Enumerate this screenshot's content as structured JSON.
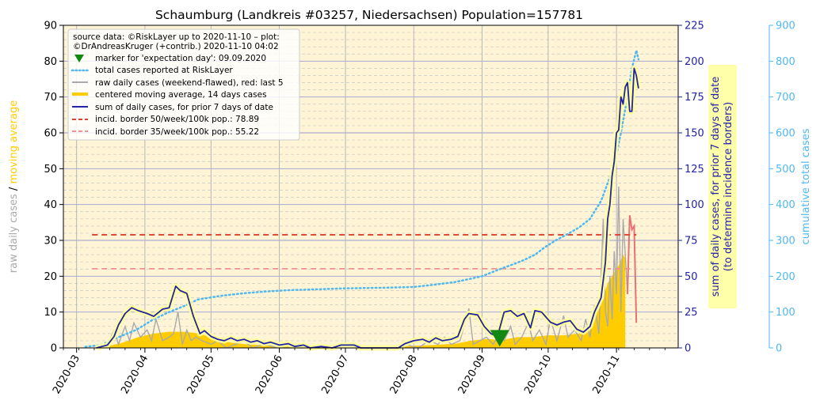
{
  "chart_data": {
    "type": "line",
    "title": "Schaumburg (Landkreis #03257, Niedersachsen) Population=157781",
    "x_ticks": [
      "2020-03",
      "2020-04",
      "2020-05",
      "2020-06",
      "2020-07",
      "2020-08",
      "2020-09",
      "2020-10",
      "2020-11"
    ],
    "xlim": [
      "2020-02-24",
      "2020-11-29"
    ],
    "left_axis": {
      "label_part1": "raw daily cases",
      "label_sep": "/",
      "label_part2": "moving average",
      "ylim": [
        0,
        90
      ],
      "ticks": [
        "0",
        "10",
        "20",
        "30",
        "40",
        "50",
        "60",
        "70",
        "80",
        "90"
      ]
    },
    "right_axis1": {
      "label_line1": "sum of daily cases, for prior 7 days of date",
      "label_line2": "(to determine incidence borders)",
      "ylim": [
        0,
        225
      ],
      "ticks": [
        "0",
        "25",
        "50",
        "75",
        "100",
        "125",
        "150",
        "175",
        "200",
        "225"
      ]
    },
    "right_axis2": {
      "label": "cumulative total cases",
      "ylim": [
        0,
        900
      ],
      "ticks": [
        "0",
        "100",
        "200",
        "300",
        "400",
        "500",
        "600",
        "700",
        "800",
        "900"
      ]
    },
    "legend": {
      "placement": "top-left",
      "header_line1": "source data: ©RiskLayer up to 2020-11-10 – plot:",
      "header_line2": "©DrAndreasKruger (+contrib.) 2020-11-10 04:02",
      "entries": [
        {
          "key": "marker",
          "label": "marker for 'expectation day': 09.09.2020"
        },
        {
          "key": "total",
          "label": "total cases reported at RiskLayer"
        },
        {
          "key": "raw",
          "label": "raw daily cases (weekend-flawed), red: last 5"
        },
        {
          "key": "avg",
          "label": "centered moving average, 14 days cases"
        },
        {
          "key": "sum7",
          "label": "sum of daily cases, for prior 7 days of date"
        },
        {
          "key": "b50",
          "label": "incid. border 50/week/100k pop.: 78.89"
        },
        {
          "key": "b35",
          "label": "incid. border 35/week/100k pop.: 55.22"
        }
      ]
    },
    "expectation_day": {
      "date": "2020-09-09",
      "value": 3
    },
    "incidence_borders": [
      {
        "name": "50/week/100k",
        "value_sum7": 78.89,
        "color": "#e04030"
      },
      {
        "name": "35/week/100k",
        "value_sum7": 55.22,
        "color": "#f09090"
      }
    ],
    "colors": {
      "bg": "#fff4d6",
      "raw": "#aaaaaa",
      "raw_recent": "#e57373",
      "avg": "#ffcc00",
      "avg_glow": "#ffff99",
      "sum7": "#2222aa",
      "total": "#4fb8f0",
      "marker": "#118811",
      "left_label1": "#aaaaaa",
      "left_label2": "#ffcc00",
      "right1": "#2222aa",
      "right2": "#4fb8f0",
      "callout_bg": "#ffffaa"
    },
    "series": {
      "total": {
        "axis": "right2",
        "points": [
          [
            "2020-03-05",
            3
          ],
          [
            "2020-03-12",
            8
          ],
          [
            "2020-03-20",
            30
          ],
          [
            "2020-03-28",
            50
          ],
          [
            "2020-04-05",
            80
          ],
          [
            "2020-04-12",
            100
          ],
          [
            "2020-04-20",
            120
          ],
          [
            "2020-04-25",
            135
          ],
          [
            "2020-05-05",
            145
          ],
          [
            "2020-05-15",
            152
          ],
          [
            "2020-05-25",
            157
          ],
          [
            "2020-06-05",
            161
          ],
          [
            "2020-06-20",
            164
          ],
          [
            "2020-07-01",
            166
          ],
          [
            "2020-07-20",
            168
          ],
          [
            "2020-08-01",
            170
          ],
          [
            "2020-08-10",
            176
          ],
          [
            "2020-08-20",
            184
          ],
          [
            "2020-09-01",
            200
          ],
          [
            "2020-09-10",
            222
          ],
          [
            "2020-09-15",
            233
          ],
          [
            "2020-09-20",
            245
          ],
          [
            "2020-09-25",
            260
          ],
          [
            "2020-09-30",
            283
          ],
          [
            "2020-10-05",
            302
          ],
          [
            "2020-10-10",
            318
          ],
          [
            "2020-10-15",
            336
          ],
          [
            "2020-10-20",
            360
          ],
          [
            "2020-10-25",
            410
          ],
          [
            "2020-10-28",
            460
          ],
          [
            "2020-10-31",
            510
          ],
          [
            "2020-11-03",
            600
          ],
          [
            "2020-11-06",
            700
          ],
          [
            "2020-11-08",
            780
          ],
          [
            "2020-11-10",
            830
          ],
          [
            "2020-11-11",
            805
          ]
        ]
      },
      "raw": {
        "axis": "left",
        "points": [
          [
            "2020-03-10",
            0
          ],
          [
            "2020-03-15",
            1
          ],
          [
            "2020-03-18",
            5
          ],
          [
            "2020-03-20",
            1
          ],
          [
            "2020-03-23",
            6
          ],
          [
            "2020-03-25",
            2
          ],
          [
            "2020-03-27",
            7
          ],
          [
            "2020-03-30",
            3
          ],
          [
            "2020-04-02",
            5
          ],
          [
            "2020-04-04",
            2
          ],
          [
            "2020-04-06",
            8
          ],
          [
            "2020-04-09",
            2
          ],
          [
            "2020-04-12",
            3
          ],
          [
            "2020-04-14",
            4
          ],
          [
            "2020-04-16",
            10
          ],
          [
            "2020-04-18",
            1
          ],
          [
            "2020-04-20",
            5
          ],
          [
            "2020-04-22",
            2
          ],
          [
            "2020-04-24",
            3
          ],
          [
            "2020-04-27",
            2
          ],
          [
            "2020-05-01",
            1
          ],
          [
            "2020-05-04",
            2
          ],
          [
            "2020-05-08",
            0
          ],
          [
            "2020-05-12",
            1
          ],
          [
            "2020-05-16",
            2
          ],
          [
            "2020-05-20",
            0
          ],
          [
            "2020-05-25",
            1
          ],
          [
            "2020-06-01",
            0
          ],
          [
            "2020-06-15",
            0
          ],
          [
            "2020-07-01",
            0
          ],
          [
            "2020-07-20",
            0
          ],
          [
            "2020-07-28",
            1
          ],
          [
            "2020-08-03",
            0
          ],
          [
            "2020-08-08",
            2
          ],
          [
            "2020-08-12",
            1
          ],
          [
            "2020-08-15",
            3
          ],
          [
            "2020-08-18",
            1
          ],
          [
            "2020-08-22",
            2
          ],
          [
            "2020-08-26",
            11
          ],
          [
            "2020-08-28",
            1
          ],
          [
            "2020-08-31",
            2
          ],
          [
            "2020-09-03",
            3
          ],
          [
            "2020-09-06",
            1
          ],
          [
            "2020-09-09",
            4
          ],
          [
            "2020-09-11",
            2
          ],
          [
            "2020-09-14",
            6
          ],
          [
            "2020-09-16",
            1
          ],
          [
            "2020-09-19",
            3
          ],
          [
            "2020-09-22",
            7
          ],
          [
            "2020-09-24",
            2
          ],
          [
            "2020-09-27",
            5
          ],
          [
            "2020-09-30",
            1
          ],
          [
            "2020-10-02",
            8
          ],
          [
            "2020-10-05",
            2
          ],
          [
            "2020-10-08",
            9
          ],
          [
            "2020-10-10",
            3
          ],
          [
            "2020-10-13",
            5
          ],
          [
            "2020-10-16",
            2
          ],
          [
            "2020-10-18",
            8
          ],
          [
            "2020-10-20",
            3
          ],
          [
            "2020-10-22",
            12
          ],
          [
            "2020-10-24",
            4
          ],
          [
            "2020-10-26",
            36
          ],
          [
            "2020-10-27",
            10
          ],
          [
            "2020-10-28",
            6
          ],
          [
            "2020-10-29",
            20
          ],
          [
            "2020-10-30",
            8
          ],
          [
            "2020-10-31",
            27
          ],
          [
            "2020-11-01",
            15
          ],
          [
            "2020-11-02",
            45
          ],
          [
            "2020-11-03",
            10
          ],
          [
            "2020-11-04",
            36
          ],
          [
            "2020-11-05",
            26
          ],
          [
            "2020-11-06",
            15
          ]
        ]
      },
      "raw_recent": {
        "axis": "left",
        "points": [
          [
            "2020-11-06",
            15
          ],
          [
            "2020-11-07",
            37
          ],
          [
            "2020-11-08",
            33
          ],
          [
            "2020-11-09",
            34
          ],
          [
            "2020-11-10",
            7
          ]
        ]
      },
      "avg": {
        "axis": "left",
        "points": [
          [
            "2020-03-08",
            0
          ],
          [
            "2020-03-15",
            0.5
          ],
          [
            "2020-03-22",
            1.5
          ],
          [
            "2020-03-29",
            3
          ],
          [
            "2020-04-05",
            4
          ],
          [
            "2020-04-12",
            4.5
          ],
          [
            "2020-04-19",
            4.5
          ],
          [
            "2020-04-26",
            4
          ],
          [
            "2020-05-03",
            2.5
          ],
          [
            "2020-05-10",
            1.5
          ],
          [
            "2020-05-17",
            1
          ],
          [
            "2020-05-24",
            0.8
          ],
          [
            "2020-06-01",
            0.5
          ],
          [
            "2020-06-10",
            0.4
          ],
          [
            "2020-06-20",
            0.2
          ],
          [
            "2020-07-01",
            0.1
          ],
          [
            "2020-07-15",
            0.1
          ],
          [
            "2020-07-25",
            0.3
          ],
          [
            "2020-08-01",
            0.6
          ],
          [
            "2020-08-10",
            0.8
          ],
          [
            "2020-08-20",
            1.2
          ],
          [
            "2020-08-27",
            2
          ],
          [
            "2020-09-03",
            2.5
          ],
          [
            "2020-09-10",
            2.2
          ],
          [
            "2020-09-17",
            3
          ],
          [
            "2020-09-24",
            3
          ],
          [
            "2020-10-01",
            3.5
          ],
          [
            "2020-10-08",
            3.5
          ],
          [
            "2020-10-15",
            4
          ],
          [
            "2020-10-20",
            6
          ],
          [
            "2020-10-25",
            12
          ],
          [
            "2020-10-28",
            18
          ],
          [
            "2020-10-31",
            21
          ],
          [
            "2020-11-02",
            23
          ],
          [
            "2020-11-04",
            26
          ],
          [
            "2020-11-05",
            25
          ],
          [
            "2020-11-05",
            0
          ]
        ]
      },
      "sum7": {
        "axis": "right1",
        "points": [
          [
            "2020-03-10",
            0
          ],
          [
            "2020-03-15",
            2
          ],
          [
            "2020-03-18",
            8
          ],
          [
            "2020-03-20",
            16
          ],
          [
            "2020-03-23",
            24
          ],
          [
            "2020-03-26",
            28
          ],
          [
            "2020-03-29",
            26
          ],
          [
            "2020-04-02",
            24
          ],
          [
            "2020-04-05",
            22
          ],
          [
            "2020-04-09",
            27
          ],
          [
            "2020-04-12",
            28
          ],
          [
            "2020-04-15",
            43
          ],
          [
            "2020-04-17",
            40
          ],
          [
            "2020-04-20",
            38
          ],
          [
            "2020-04-23",
            22
          ],
          [
            "2020-04-26",
            10
          ],
          [
            "2020-04-28",
            12
          ],
          [
            "2020-05-01",
            8
          ],
          [
            "2020-05-04",
            6
          ],
          [
            "2020-05-07",
            5
          ],
          [
            "2020-05-10",
            7
          ],
          [
            "2020-05-13",
            5
          ],
          [
            "2020-05-16",
            6
          ],
          [
            "2020-05-19",
            4
          ],
          [
            "2020-05-22",
            5
          ],
          [
            "2020-05-25",
            3
          ],
          [
            "2020-05-28",
            4
          ],
          [
            "2020-06-01",
            2
          ],
          [
            "2020-06-05",
            3
          ],
          [
            "2020-06-08",
            1
          ],
          [
            "2020-06-12",
            2
          ],
          [
            "2020-06-15",
            0
          ],
          [
            "2020-06-20",
            1
          ],
          [
            "2020-06-25",
            0
          ],
          [
            "2020-06-29",
            2
          ],
          [
            "2020-07-05",
            2
          ],
          [
            "2020-07-08",
            0
          ],
          [
            "2020-07-25",
            0
          ],
          [
            "2020-07-28",
            3
          ],
          [
            "2020-08-01",
            5
          ],
          [
            "2020-08-05",
            6
          ],
          [
            "2020-08-08",
            4
          ],
          [
            "2020-08-11",
            7
          ],
          [
            "2020-08-14",
            5
          ],
          [
            "2020-08-18",
            6
          ],
          [
            "2020-08-21",
            8
          ],
          [
            "2020-08-24",
            20
          ],
          [
            "2020-08-26",
            24
          ],
          [
            "2020-08-30",
            23
          ],
          [
            "2020-09-02",
            15
          ],
          [
            "2020-09-05",
            10
          ],
          [
            "2020-09-08",
            8
          ],
          [
            "2020-09-11",
            25
          ],
          [
            "2020-09-14",
            26
          ],
          [
            "2020-09-17",
            22
          ],
          [
            "2020-09-20",
            24
          ],
          [
            "2020-09-23",
            14
          ],
          [
            "2020-09-25",
            26
          ],
          [
            "2020-09-28",
            25
          ],
          [
            "2020-10-02",
            18
          ],
          [
            "2020-10-05",
            16
          ],
          [
            "2020-10-08",
            18
          ],
          [
            "2020-10-11",
            19
          ],
          [
            "2020-10-14",
            13
          ],
          [
            "2020-10-17",
            11
          ],
          [
            "2020-10-20",
            15
          ],
          [
            "2020-10-22",
            25
          ],
          [
            "2020-10-25",
            35
          ],
          [
            "2020-10-27",
            60
          ],
          [
            "2020-10-28",
            90
          ],
          [
            "2020-10-29",
            100
          ],
          [
            "2020-10-30",
            120
          ],
          [
            "2020-10-31",
            130
          ],
          [
            "2020-11-01",
            150
          ],
          [
            "2020-11-02",
            152
          ],
          [
            "2020-11-03",
            175
          ],
          [
            "2020-11-04",
            170
          ],
          [
            "2020-11-05",
            182
          ],
          [
            "2020-11-06",
            185
          ],
          [
            "2020-11-07",
            165
          ],
          [
            "2020-11-08",
            165
          ],
          [
            "2020-11-09",
            195
          ],
          [
            "2020-11-10",
            190
          ],
          [
            "2020-11-11",
            181
          ]
        ]
      }
    }
  }
}
